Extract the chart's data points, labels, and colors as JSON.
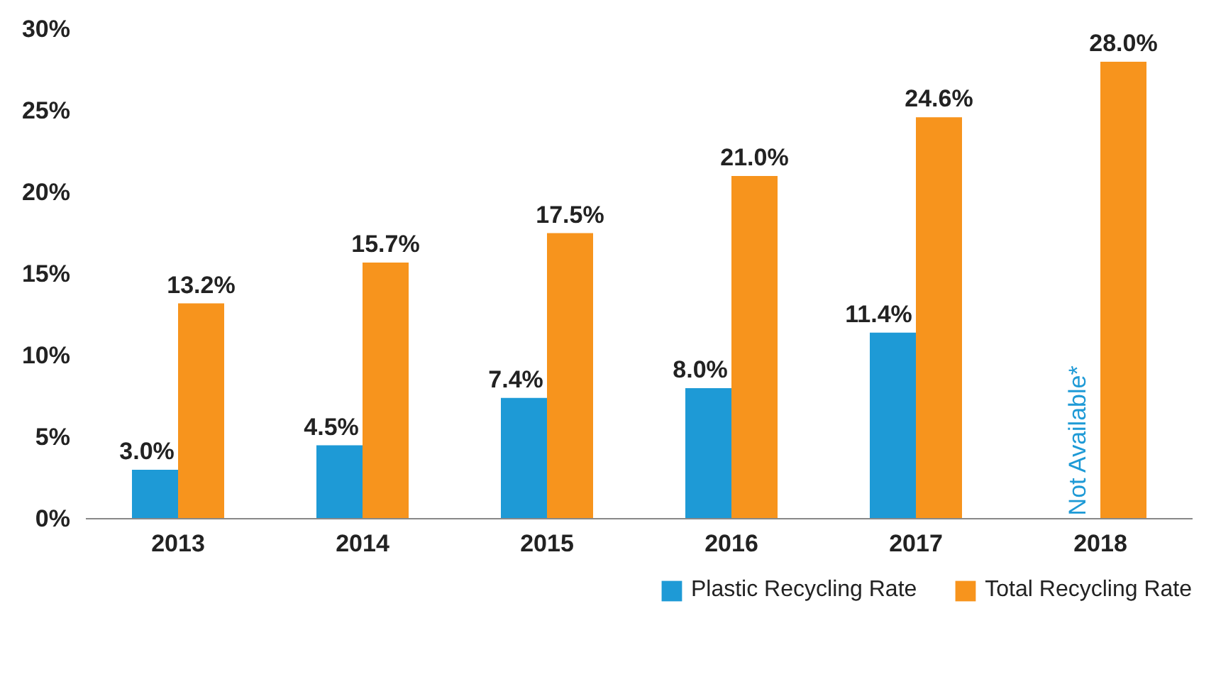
{
  "chart_data": {
    "type": "bar",
    "categories": [
      "2013",
      "2014",
      "2015",
      "2016",
      "2017",
      "2018"
    ],
    "series": [
      {
        "name": "Plastic Recycling Rate",
        "color": "#1e9ad6",
        "values": [
          3.0,
          4.5,
          7.4,
          8.0,
          11.4,
          null
        ],
        "value_labels": [
          "3.0%",
          "4.5%",
          "7.4%",
          "8.0%",
          "11.4%",
          null
        ]
      },
      {
        "name": "Total Recycling Rate",
        "color": "#f7941d",
        "values": [
          13.2,
          15.7,
          17.5,
          21.0,
          24.6,
          28.0
        ],
        "value_labels": [
          "13.2%",
          "15.7%",
          "17.5%",
          "21.0%",
          "24.6%",
          "28.0%"
        ]
      }
    ],
    "ylim": [
      0,
      30
    ],
    "yticks": [
      {
        "value": 0,
        "label": "0%"
      },
      {
        "value": 5,
        "label": "5%"
      },
      {
        "value": 10,
        "label": "10%"
      },
      {
        "value": 15,
        "label": "15%"
      },
      {
        "value": 20,
        "label": "20%"
      },
      {
        "value": 25,
        "label": "25%"
      },
      {
        "value": 30,
        "label": "30%"
      }
    ],
    "annotations": [
      {
        "text": "Not Available*",
        "x": "2018",
        "y": 0
      }
    ],
    "grid": false,
    "legend": "bottom right"
  }
}
